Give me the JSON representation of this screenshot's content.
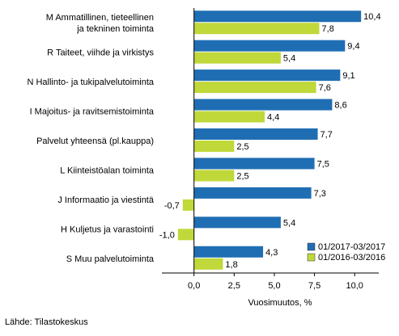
{
  "chart_data": {
    "type": "bar",
    "orientation": "horizontal",
    "categories": [
      [
        "M Ammatillinen, tieteellinen",
        "ja tekninen toiminta"
      ],
      [
        "R Taiteet, viihde ja virkistys"
      ],
      [
        "N Hallinto- ja tukipalvelutoiminta"
      ],
      [
        "I Majoitus- ja ravitsemistoiminta"
      ],
      [
        "Palvelut yhteensä (pl.kauppa)"
      ],
      [
        "L Kiinteistöalan toiminta"
      ],
      [
        "J Informaatio ja viestintä"
      ],
      [
        "H Kuljetus ja varastointi"
      ],
      [
        "S Muu palvelutoiminta"
      ]
    ],
    "series": [
      {
        "name": "01/2017-03/2017",
        "color": "#1f6eb3",
        "values": [
          10.4,
          9.4,
          9.1,
          8.6,
          7.7,
          7.5,
          7.3,
          5.4,
          4.3
        ],
        "labels": [
          "10,4",
          "9,4",
          "9,1",
          "8,6",
          "7,7",
          "7,5",
          "7,3",
          "5,4",
          "4,3"
        ]
      },
      {
        "name": "01/2016-03/2016",
        "color": "#c0d83a",
        "values": [
          7.8,
          5.4,
          7.6,
          4.4,
          2.5,
          2.5,
          -0.7,
          -1.0,
          1.8
        ],
        "labels": [
          "7,8",
          "5,4",
          "7,6",
          "4,4",
          "2,5",
          "2,5",
          "-0,7",
          "-1,0",
          "1,8"
        ]
      }
    ],
    "xticks": [
      0,
      2.5,
      5,
      7.5,
      10
    ],
    "xtick_labels": [
      "0,0",
      "2,5",
      "5,0",
      "7,5",
      "10,0"
    ],
    "xlim": [
      -2,
      11.5
    ],
    "xlabel": "Vuosimuutos, %",
    "legend_position": "bottom-right",
    "grid": false
  },
  "source": "Lähde: Tilastokeskus"
}
